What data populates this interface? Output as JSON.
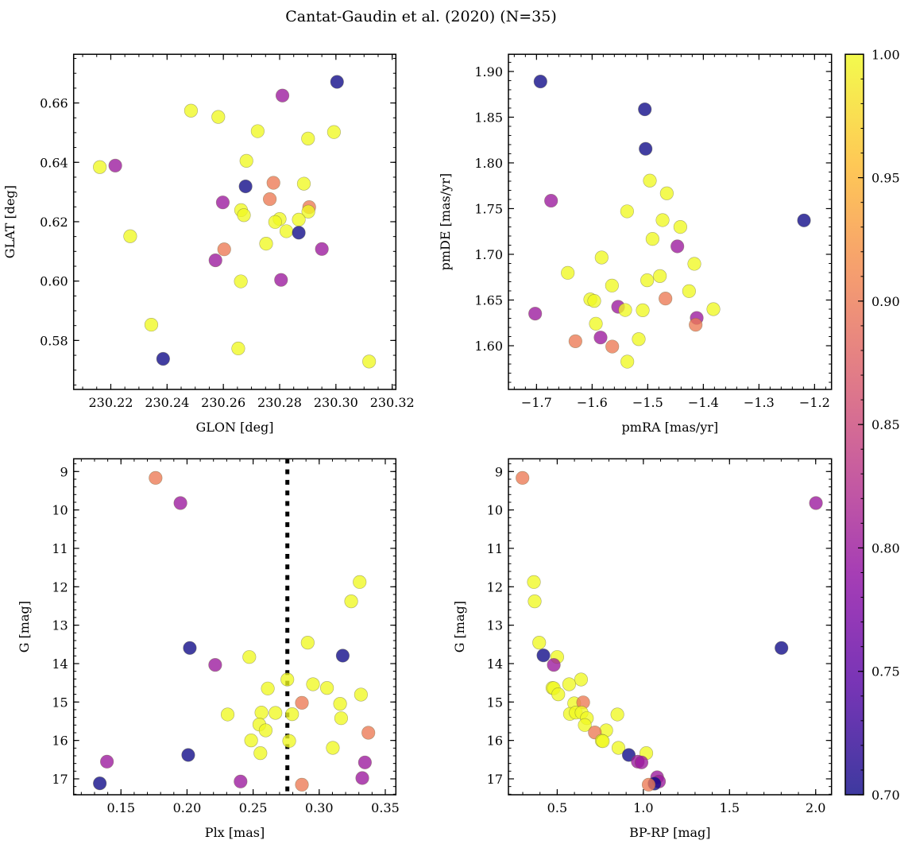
{
  "title": "Cantat-Gaudin et al. (2020) (N=35)",
  "chart_data": [
    {
      "type": "scatter",
      "xlabel": "GLON [deg]",
      "ylabel": "GLAT [deg]",
      "xlim": [
        230.2068,
        230.3213
      ],
      "ylim": [
        0.5635,
        0.6764
      ],
      "xticks": [
        230.22,
        230.24,
        230.26,
        230.28,
        230.3,
        230.32
      ],
      "xtick_labels": [
        "230.22",
        "230.24",
        "230.26",
        "230.28",
        "230.30",
        "230.32"
      ],
      "xminor": 0.005,
      "yticks": [
        0.58,
        0.6,
        0.62,
        0.64,
        0.66
      ],
      "ytick_labels": [
        "0.58",
        "0.60",
        "0.62",
        "0.64",
        "0.66"
      ],
      "yminor": 0.005,
      "points": [
        [
          230.3004,
          0.6671,
          0.7
        ],
        [
          230.281,
          0.6625,
          0.8
        ],
        [
          230.2485,
          0.6574,
          1.0
        ],
        [
          230.2582,
          0.6553,
          1.0
        ],
        [
          230.2722,
          0.6505,
          1.0
        ],
        [
          230.2993,
          0.6502,
          1.0
        ],
        [
          230.2901,
          0.648,
          1.0
        ],
        [
          230.2161,
          0.6384,
          1.0
        ],
        [
          230.2216,
          0.6389,
          0.8
        ],
        [
          230.2682,
          0.6405,
          1.0
        ],
        [
          230.2679,
          0.6319,
          0.7
        ],
        [
          230.2778,
          0.6331,
          0.9
        ],
        [
          230.2886,
          0.6328,
          1.0
        ],
        [
          230.2598,
          0.6265,
          0.8
        ],
        [
          230.2765,
          0.6276,
          0.9
        ],
        [
          230.2905,
          0.6249,
          0.9
        ],
        [
          230.2663,
          0.6239,
          1.0
        ],
        [
          230.2673,
          0.6222,
          1.0
        ],
        [
          230.2902,
          0.6234,
          1.0
        ],
        [
          230.28,
          0.6209,
          1.0
        ],
        [
          230.2784,
          0.6199,
          1.0
        ],
        [
          230.2868,
          0.6207,
          1.0
        ],
        [
          230.2824,
          0.6168,
          1.0
        ],
        [
          230.2868,
          0.6163,
          0.7
        ],
        [
          230.2269,
          0.6151,
          1.0
        ],
        [
          230.2752,
          0.6126,
          1.0
        ],
        [
          230.295,
          0.6108,
          0.8
        ],
        [
          230.2603,
          0.6107,
          0.9
        ],
        [
          230.2572,
          0.607,
          0.8
        ],
        [
          230.2662,
          0.5999,
          1.0
        ],
        [
          230.2805,
          0.6004,
          0.8
        ],
        [
          230.2344,
          0.5853,
          1.0
        ],
        [
          230.2653,
          0.5773,
          1.0
        ],
        [
          230.2386,
          0.5738,
          0.7
        ],
        [
          230.3118,
          0.5729,
          1.0
        ]
      ]
    },
    {
      "type": "scatter",
      "xlabel": "pmRA [mas/yr]",
      "ylabel": "pmDE [mas/yr]",
      "xlim": [
        -1.7505,
        -1.1695
      ],
      "ylim": [
        1.5522,
        1.9188
      ],
      "xticks": [
        -1.7,
        -1.6,
        -1.5,
        -1.4,
        -1.3,
        -1.2
      ],
      "xtick_labels": [
        "−1.7",
        "−1.6",
        "−1.5",
        "−1.4",
        "−1.3",
        "−1.2"
      ],
      "xminor": 0.02,
      "yticks": [
        1.6,
        1.65,
        1.7,
        1.75,
        1.8,
        1.85,
        1.9
      ],
      "ytick_labels": [
        "1.60",
        "1.65",
        "1.70",
        "1.75",
        "1.80",
        "1.85",
        "1.90"
      ],
      "yminor": 0.01,
      "points": [
        [
          -1.6929,
          1.889,
          0.7
        ],
        [
          -1.5052,
          1.8586,
          0.7
        ],
        [
          -1.5038,
          1.8154,
          0.7
        ],
        [
          -1.4962,
          1.7806,
          1.0
        ],
        [
          -1.4657,
          1.7667,
          1.0
        ],
        [
          -1.6738,
          1.7586,
          0.8
        ],
        [
          -1.5371,
          1.747,
          1.0
        ],
        [
          -1.4733,
          1.7374,
          1.0
        ],
        [
          -1.4414,
          1.7299,
          1.0
        ],
        [
          -1.4914,
          1.7168,
          1.0
        ],
        [
          -1.4467,
          1.7087,
          0.8
        ],
        [
          -1.5829,
          1.6965,
          1.0
        ],
        [
          -1.4162,
          1.6896,
          1.0
        ],
        [
          -1.6438,
          1.6797,
          1.0
        ],
        [
          -1.4781,
          1.6762,
          1.0
        ],
        [
          -1.5643,
          1.6658,
          1.0
        ],
        [
          -1.501,
          1.6716,
          1.0
        ],
        [
          -1.4257,
          1.6597,
          1.0
        ],
        [
          -1.6033,
          1.6507,
          1.0
        ],
        [
          -1.5962,
          1.649,
          1.0
        ],
        [
          -1.4681,
          1.6516,
          0.9
        ],
        [
          -1.5533,
          1.6426,
          0.8
        ],
        [
          -1.5405,
          1.6391,
          1.0
        ],
        [
          -1.509,
          1.6388,
          1.0
        ],
        [
          -1.7024,
          1.6351,
          0.8
        ],
        [
          -1.3819,
          1.64,
          1.0
        ],
        [
          -1.4119,
          1.6304,
          0.8
        ],
        [
          -1.4138,
          1.6229,
          0.9
        ],
        [
          -1.5933,
          1.6241,
          1.0
        ],
        [
          -1.63,
          1.6049,
          0.9
        ],
        [
          -1.5848,
          1.609,
          0.8
        ],
        [
          -1.5638,
          1.5991,
          0.9
        ],
        [
          -1.5162,
          1.6072,
          1.0
        ],
        [
          -1.5367,
          1.5826,
          1.0
        ],
        [
          -1.219,
          1.7371,
          0.7
        ]
      ]
    },
    {
      "type": "scatter",
      "xlabel": "Plx [mas]",
      "ylabel": "G [mag]",
      "xlim": [
        0.1142,
        0.358
      ],
      "ylim": [
        17.414,
        8.669
      ],
      "xticks": [
        0.15,
        0.2,
        0.25,
        0.3,
        0.35
      ],
      "xtick_labels": [
        "0.15",
        "0.20",
        "0.25",
        "0.30",
        "0.35"
      ],
      "xminor": 0.01,
      "yticks": [
        9,
        10,
        11,
        12,
        13,
        14,
        15,
        16,
        17
      ],
      "ytick_labels": [
        "9",
        "10",
        "11",
        "12",
        "13",
        "14",
        "15",
        "16",
        "17"
      ],
      "yminor": 0.2,
      "vline": 0.2759,
      "points": [
        [
          0.1762,
          9.166,
          0.9
        ],
        [
          0.195,
          9.821,
          0.8
        ],
        [
          0.2021,
          13.593,
          0.7
        ],
        [
          0.2213,
          14.034,
          0.8
        ],
        [
          0.2471,
          13.828,
          1.0
        ],
        [
          0.2913,
          13.455,
          1.0
        ],
        [
          0.3178,
          13.793,
          0.7
        ],
        [
          0.3306,
          11.876,
          1.0
        ],
        [
          0.3242,
          12.379,
          1.0
        ],
        [
          0.2759,
          14.414,
          1.0
        ],
        [
          0.2611,
          14.648,
          1.0
        ],
        [
          0.2953,
          14.538,
          1.0
        ],
        [
          0.3059,
          14.634,
          1.0
        ],
        [
          0.3316,
          14.807,
          1.0
        ],
        [
          0.2869,
          15.021,
          0.9
        ],
        [
          0.3158,
          15.048,
          1.0
        ],
        [
          0.2307,
          15.324,
          1.0
        ],
        [
          0.2563,
          15.276,
          1.0
        ],
        [
          0.2669,
          15.283,
          1.0
        ],
        [
          0.2795,
          15.317,
          1.0
        ],
        [
          0.3166,
          15.421,
          1.0
        ],
        [
          0.2547,
          15.586,
          1.0
        ],
        [
          0.2595,
          15.738,
          1.0
        ],
        [
          0.3372,
          15.8,
          0.9
        ],
        [
          0.2485,
          16.0,
          1.0
        ],
        [
          0.2773,
          16.014,
          1.0
        ],
        [
          0.3103,
          16.193,
          1.0
        ],
        [
          0.2555,
          16.331,
          1.0
        ],
        [
          0.2009,
          16.379,
          0.7
        ],
        [
          0.1394,
          16.552,
          0.8
        ],
        [
          0.3346,
          16.572,
          0.8
        ],
        [
          0.3326,
          16.979,
          0.8
        ],
        [
          0.2405,
          17.069,
          0.8
        ],
        [
          0.2869,
          17.152,
          0.9
        ],
        [
          0.134,
          17.117,
          0.7
        ]
      ]
    },
    {
      "type": "scatter",
      "xlabel": "BP-RP [mag]",
      "ylabel": "G [mag]",
      "xlim": [
        0.2169,
        2.092
      ],
      "ylim": [
        17.414,
        8.669
      ],
      "xticks": [
        0.5,
        1.0,
        1.5,
        2.0
      ],
      "xtick_labels": [
        "0.5",
        "1.0",
        "1.5",
        "2.0"
      ],
      "xminor": 0.1,
      "yticks": [
        9,
        10,
        11,
        12,
        13,
        14,
        15,
        16,
        17
      ],
      "ytick_labels": [
        "9",
        "10",
        "11",
        "12",
        "13",
        "14",
        "15",
        "16",
        "17"
      ],
      "yminor": 0.2,
      "points": [
        [
          0.2985,
          9.166,
          0.9
        ],
        [
          2.0015,
          9.821,
          0.8
        ],
        [
          0.3646,
          11.876,
          1.0
        ],
        [
          0.3692,
          12.379,
          1.0
        ],
        [
          0.3954,
          13.455,
          1.0
        ],
        [
          0.42,
          13.786,
          0.7
        ],
        [
          0.5,
          13.828,
          1.0
        ],
        [
          0.48,
          14.034,
          0.8
        ],
        [
          0.6385,
          14.414,
          1.0
        ],
        [
          0.5692,
          14.538,
          1.0
        ],
        [
          0.4723,
          14.634,
          1.0
        ],
        [
          0.48,
          14.64,
          1.0
        ],
        [
          0.5062,
          14.8,
          1.0
        ],
        [
          0.5985,
          15.034,
          1.0
        ],
        [
          0.6508,
          15.01,
          0.9
        ],
        [
          0.8492,
          15.324,
          1.0
        ],
        [
          0.5738,
          15.31,
          1.0
        ],
        [
          0.6077,
          15.276,
          1.0
        ],
        [
          0.6415,
          15.276,
          1.0
        ],
        [
          0.6723,
          15.421,
          1.0
        ],
        [
          0.66,
          15.6,
          1.0
        ],
        [
          0.7846,
          15.738,
          1.0
        ],
        [
          0.7185,
          15.793,
          0.9
        ],
        [
          0.7585,
          16.007,
          1.0
        ],
        [
          0.7646,
          16.02,
          1.0
        ],
        [
          0.8554,
          16.193,
          1.0
        ],
        [
          1.0169,
          16.331,
          1.0
        ],
        [
          0.9154,
          16.379,
          0.7
        ],
        [
          0.9677,
          16.552,
          0.8
        ],
        [
          0.9892,
          16.572,
          0.8
        ],
        [
          1.08,
          16.959,
          0.8
        ],
        [
          1.0908,
          17.069,
          0.8
        ],
        [
          1.0646,
          17.124,
          0.7
        ],
        [
          1.0308,
          17.152,
          0.9
        ],
        [
          1.8015,
          13.593,
          0.7
        ]
      ]
    }
  ],
  "colorbar": {
    "cmap": "plasma",
    "range": [
      0.7,
      1.0
    ],
    "ticks": [
      0.7,
      0.75,
      0.8,
      0.85,
      0.9,
      0.95,
      1.0
    ],
    "tick_labels": [
      "0.70",
      "0.75",
      "0.80",
      "0.85",
      "0.90",
      "0.95",
      "1.00"
    ],
    "minor": 0.01
  },
  "colors": {
    "plasma_stops": [
      "#0d0887",
      "#5302a3",
      "#8b0aa5",
      "#b83289",
      "#db5c68",
      "#f48849",
      "#febd2a",
      "#f0f921"
    ]
  }
}
